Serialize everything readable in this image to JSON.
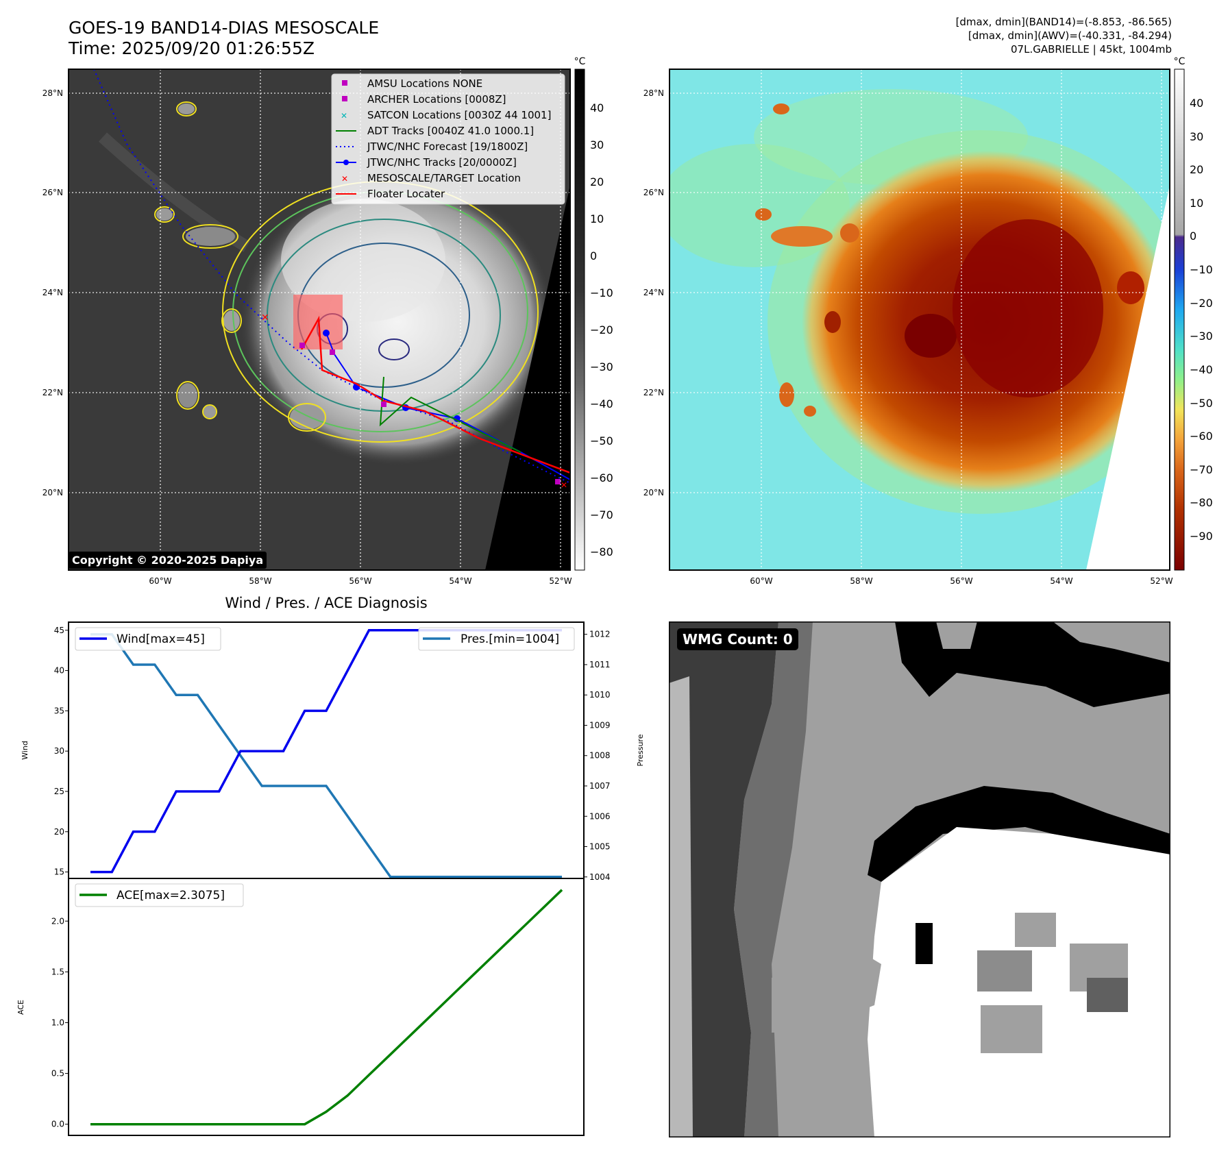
{
  "header": {
    "title_line1": "GOES-19 BAND14-DIAS MESOSCALE",
    "title_line2": "Time: 2025/09/20 01:26:55Z",
    "info_line1": "[dmax, dmin](BAND14)=(-8.853, -86.565)",
    "info_line2": "[dmax, dmin](AWV)=(-40.331, -84.294)",
    "info_line3": "07L.GABRIELLE | 45kt, 1004mb"
  },
  "copyright": "Copyright © 2020-2025 Dapiya",
  "map": {
    "lat_ticks": [
      "28°N",
      "26°N",
      "24°N",
      "22°N",
      "20°N"
    ],
    "lat_values": [
      28,
      26,
      24,
      22,
      20
    ],
    "lon_ticks": [
      "60°W",
      "58°W",
      "56°W",
      "54°W",
      "52°W"
    ],
    "lon_values": [
      -60,
      -58,
      -56,
      -54,
      -52
    ],
    "extent": {
      "lon_min": -61.85,
      "lon_max": -51.8,
      "lat_min": 18.5,
      "lat_max": 28.5
    }
  },
  "colorbar_gray": {
    "unit": "°C",
    "ticks": [
      "40",
      "30",
      "20",
      "10",
      "0",
      "−10",
      "−20",
      "−30",
      "−40",
      "−50",
      "−60",
      "−70",
      "−80"
    ],
    "values": [
      40,
      30,
      20,
      10,
      0,
      -10,
      -20,
      -30,
      -40,
      -50,
      -60,
      -70,
      -80
    ],
    "range": [
      -85,
      50
    ]
  },
  "colorbar_color": {
    "unit": "°C",
    "ticks": [
      "40",
      "30",
      "20",
      "10",
      "0",
      "−10",
      "−20",
      "−30",
      "−40",
      "−50",
      "−60",
      "−70",
      "−80",
      "−90"
    ],
    "values": [
      40,
      30,
      20,
      10,
      0,
      -10,
      -20,
      -30,
      -40,
      -50,
      -60,
      -70,
      -80,
      -90
    ],
    "range": [
      -100,
      50
    ]
  },
  "legend": [
    {
      "label": "AMSU Locations NONE",
      "marker": "square",
      "color": "#c000c0"
    },
    {
      "label": "ARCHER Locations [0008Z]",
      "marker": "square",
      "color": "#c000c0"
    },
    {
      "label": "SATCON Locations [0030Z 44 1001]",
      "marker": "x",
      "color": "#00b5b5"
    },
    {
      "label": "ADT Tracks [0040Z 41.0 1000.1]",
      "marker": "line",
      "color": "#008000"
    },
    {
      "label": "JTWC/NHC Forecast [19/1800Z]",
      "marker": "dotted",
      "color": "#0000ff"
    },
    {
      "label": "JTWC/NHC Tracks [20/0000Z]",
      "marker": "line-dot",
      "color": "#0000ff"
    },
    {
      "label": "MESOSCALE/TARGET Location",
      "marker": "x",
      "color": "#ff0000"
    },
    {
      "label": "Floater Locater",
      "marker": "line",
      "color": "#ff0000"
    }
  ],
  "diag_title": "Wind / Pres. / ACE Diagnosis",
  "wmg_label": "WMG Count: 0",
  "colors": {
    "wind": "#0000ee",
    "pressure": "#1f77b4",
    "ace": "#008000",
    "track_forecast": "#0000ff",
    "floater": "#ff0000"
  },
  "chart_data": [
    {
      "type": "line",
      "x": [
        0,
        1,
        2,
        3,
        4,
        5,
        6,
        7,
        8,
        9,
        10,
        11,
        12,
        13,
        14,
        15,
        16,
        17,
        18,
        19,
        20,
        21,
        22
      ],
      "series": [
        {
          "name": "Wind[max=45]",
          "axis": "left",
          "values": [
            15,
            15,
            20,
            20,
            25,
            25,
            25,
            30,
            30,
            30,
            35,
            35,
            40,
            45,
            45,
            45,
            45,
            45,
            45,
            45,
            45,
            45,
            45
          ]
        },
        {
          "name": "Pres.[min=1004]",
          "axis": "right",
          "values": [
            1012,
            1012,
            1011,
            1011,
            1010,
            1010,
            1009,
            1008,
            1007,
            1007,
            1007,
            1007,
            1006,
            1005,
            1004,
            1004,
            1004,
            1004,
            1004,
            1004,
            1004,
            1004,
            1004
          ]
        }
      ],
      "ylabel": "Wind",
      "ylabel_right": "Pressure",
      "ylim": [
        14.2,
        46.0
      ],
      "ylim_right": [
        1003.95,
        1012.4
      ],
      "yticks": [
        15,
        20,
        25,
        30,
        35,
        40,
        45
      ],
      "yticks_right": [
        1004,
        1005,
        1006,
        1007,
        1008,
        1009,
        1010,
        1011,
        1012
      ],
      "legend_position": "top-left / top-right"
    },
    {
      "type": "line",
      "x": [
        0,
        1,
        2,
        3,
        4,
        5,
        6,
        7,
        8,
        9,
        10,
        11,
        12,
        13,
        14,
        15,
        16,
        17,
        18,
        19,
        20,
        21,
        22
      ],
      "series": [
        {
          "name": "ACE[max=2.3075]",
          "values": [
            0,
            0,
            0,
            0,
            0,
            0,
            0,
            0,
            0,
            0,
            0,
            0.1225,
            0.2825,
            0.485,
            0.6875,
            0.89,
            1.0925,
            1.295,
            1.4975,
            1.7,
            1.9025,
            2.105,
            2.3075
          ]
        }
      ],
      "ylabel": "ACE",
      "ylim": [
        -0.11,
        2.42
      ],
      "yticks": [
        0.0,
        0.5,
        1.0,
        1.5,
        2.0
      ],
      "legend_position": "top-left"
    }
  ]
}
